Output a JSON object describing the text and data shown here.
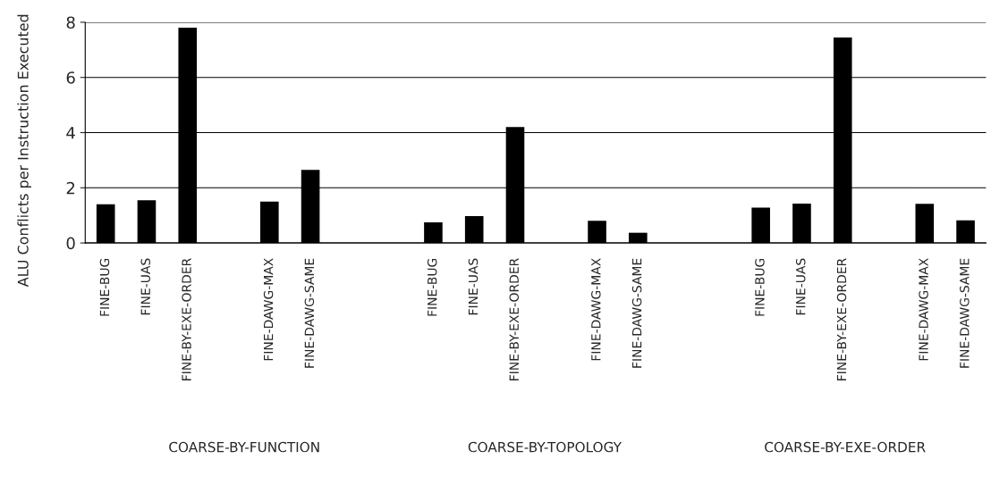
{
  "chart_data": {
    "type": "bar",
    "ylabel": "ALU Conflicts per Instruction Executed",
    "categories": [
      "FINE-BUG",
      "FINE-UAS",
      "FINE-BY-EXE-ORDER",
      null,
      "FINE-DAWG-MAX",
      "FINE-DAWG-SAME",
      null,
      null,
      "FINE-BUG",
      "FINE-UAS",
      "FINE-BY-EXE-ORDER",
      null,
      "FINE-DAWG-MAX",
      "FINE-DAWG-SAME",
      null,
      null,
      "FINE-BUG",
      "FINE-UAS",
      "FINE-BY-EXE-ORDER",
      null,
      "FINE-DAWG-MAX",
      "FINE-DAWG-SAME"
    ],
    "values": [
      1.4,
      1.55,
      7.8,
      null,
      1.5,
      2.65,
      null,
      null,
      0.75,
      0.97,
      4.2,
      null,
      0.8,
      0.37,
      null,
      null,
      1.28,
      1.43,
      7.45,
      null,
      1.42,
      0.82
    ],
    "color": "#000000",
    "ylim": [
      0,
      8
    ],
    "yticks": [
      0,
      2,
      4,
      6,
      8
    ],
    "grid": "y",
    "legend": false,
    "annotations": [
      "COARSE-BY-FUNCTION",
      "COARSE-BY-TOPOLOGY",
      "COARSE-BY-EXE-ORDER"
    ]
  }
}
